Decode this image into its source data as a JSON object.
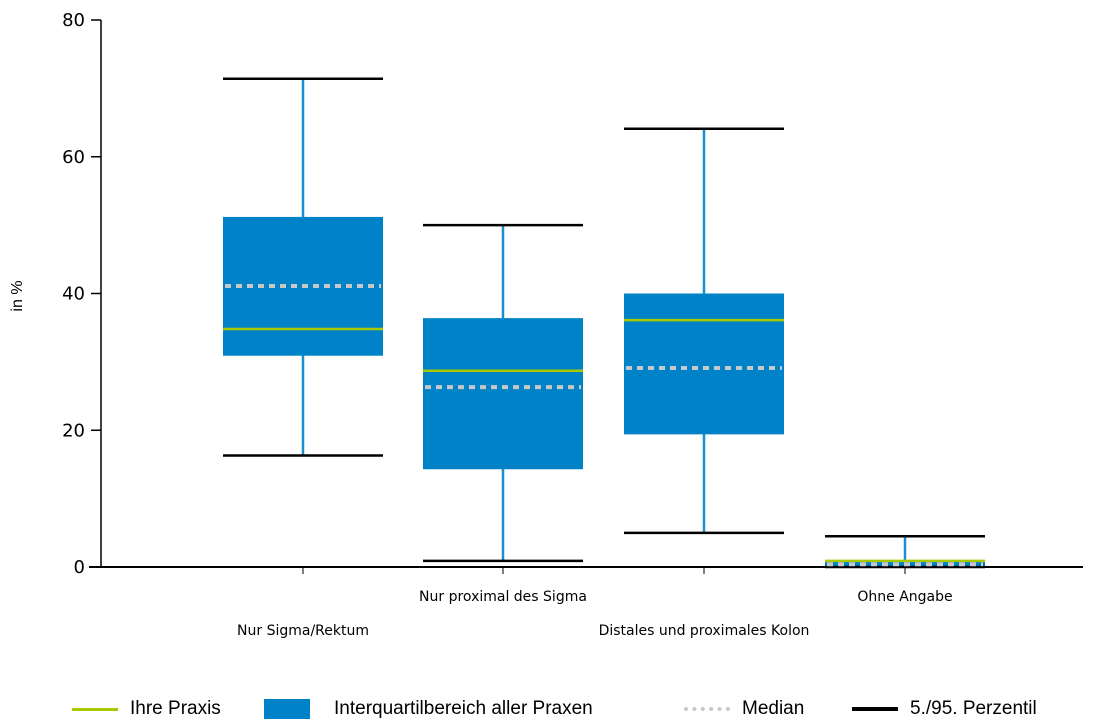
{
  "chart_data": {
    "type": "boxplot",
    "ylabel": "in %",
    "ylim": [
      0,
      80
    ],
    "yticks": [
      0,
      20,
      40,
      60,
      80
    ],
    "categories": [
      "Nur Sigma/Rektum",
      "Nur proximal des Sigma",
      "Distales und proximales Kolon",
      "Ohne Angabe"
    ],
    "boxes": [
      {
        "category": "Nur Sigma/Rektum",
        "p5": 16.3,
        "q1": 30.9,
        "median": 41.1,
        "q3": 51.2,
        "p95": 71.4,
        "ihre_praxis": 34.8
      },
      {
        "category": "Nur proximal des Sigma",
        "p5": 0.9,
        "q1": 14.3,
        "median": 26.3,
        "q3": 36.4,
        "p95": 50.0,
        "ihre_praxis": 28.7
      },
      {
        "category": "Distales und proximales Kolon",
        "p5": 5.0,
        "q1": 19.4,
        "median": 29.1,
        "q3": 40.0,
        "p95": 64.1,
        "ihre_praxis": 36.1
      },
      {
        "category": "Ohne Angabe",
        "p5": 0.0,
        "q1": 0.0,
        "median": 0.4,
        "q3": 0.9,
        "p95": 4.5,
        "ihre_praxis": 0.9
      }
    ],
    "legend": [
      {
        "key": "ihre_praxis",
        "label": "Ihre Praxis"
      },
      {
        "key": "iqr",
        "label": "Interquartilbereich aller Praxen"
      },
      {
        "key": "median",
        "label": "Median"
      },
      {
        "key": "percentile",
        "label": "5./95. Perzentil"
      }
    ],
    "legend_placement": "bottom",
    "grid": false,
    "colors": {
      "box": "#0082c8",
      "whisker": "#1a8fd0",
      "ihre_praxis": "#a8c800",
      "median": "#c8c8c8",
      "percentile": "#000000",
      "axis": "#000000"
    }
  }
}
